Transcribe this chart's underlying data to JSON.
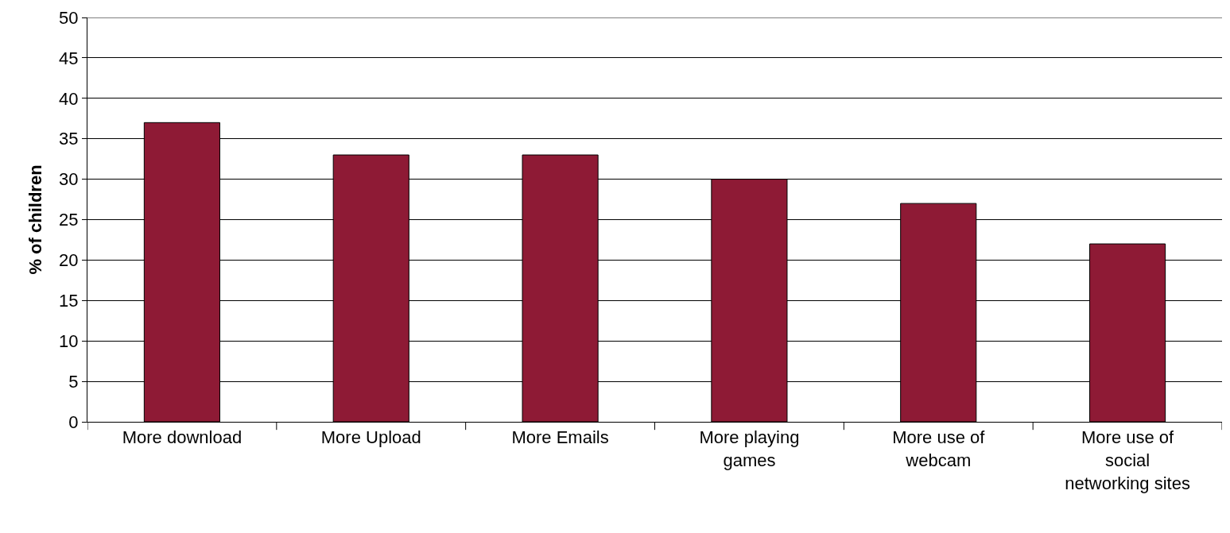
{
  "chart_data": {
    "type": "bar",
    "ylabel": "% of children",
    "categories": [
      "More download",
      "More Upload",
      "More Emails",
      "More playing games",
      "More use of webcam",
      "More use of social networking sites"
    ],
    "values": [
      37,
      33,
      33,
      30,
      27,
      22
    ],
    "color": "#8e1a35",
    "ylim": [
      0,
      50
    ],
    "yticks": [
      0,
      5,
      10,
      15,
      20,
      25,
      30,
      35,
      40,
      45,
      50
    ],
    "grid": "y"
  }
}
